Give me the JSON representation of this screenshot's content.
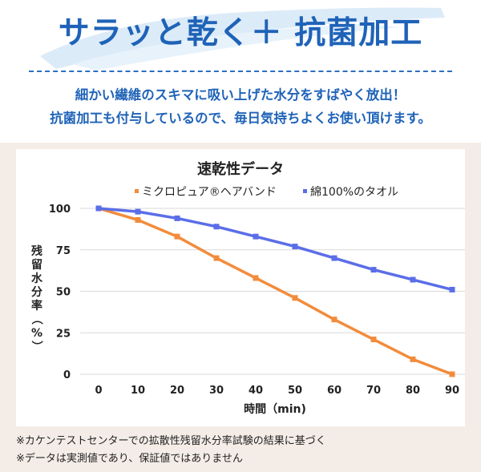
{
  "header": {
    "headline": "サラッと乾く＋ 抗菌加工",
    "subtitle_lines": [
      "細かい繊維のスキマに吸い上げた水分をすばやく放出！",
      "抗菌加工も付与しているので、毎日気持ちよくお使い頂けます。"
    ]
  },
  "colors": {
    "brand_blue": "#1f63b8",
    "series_orange": "#f28c3c",
    "series_blue": "#5b6ee8",
    "panel_bg": "#f4ede7"
  },
  "chart_data": {
    "type": "line",
    "title": "速乾性データ",
    "xlabel": "時間（min)",
    "ylabel": "残留水分率（%）",
    "x": [
      0,
      10,
      20,
      30,
      40,
      50,
      60,
      70,
      80,
      90
    ],
    "x_ticks": [
      "0",
      "10",
      "20",
      "30",
      "40",
      "50",
      "60",
      "70",
      "80",
      "90"
    ],
    "y_ticks": [
      "0",
      "25",
      "50",
      "75",
      "100"
    ],
    "ylim": [
      0,
      100
    ],
    "xlim": [
      0,
      90
    ],
    "grid": "horizontal",
    "legend_position": "top",
    "series": [
      {
        "name": "ミクロピュア®ヘアバンド",
        "color": "#f28c3c",
        "values": [
          100,
          93,
          83,
          70,
          58,
          46,
          33,
          21,
          9,
          0
        ]
      },
      {
        "name": "綿100%のタオル",
        "color": "#5b6ee8",
        "values": [
          100,
          98,
          94,
          89,
          83,
          77,
          70,
          63,
          57,
          51
        ]
      }
    ]
  },
  "footnotes": [
    "※カケンテストセンターでの拡散性残留水分率試験の結果に基づく",
    "※データは実測値であり、保証値ではありません"
  ]
}
